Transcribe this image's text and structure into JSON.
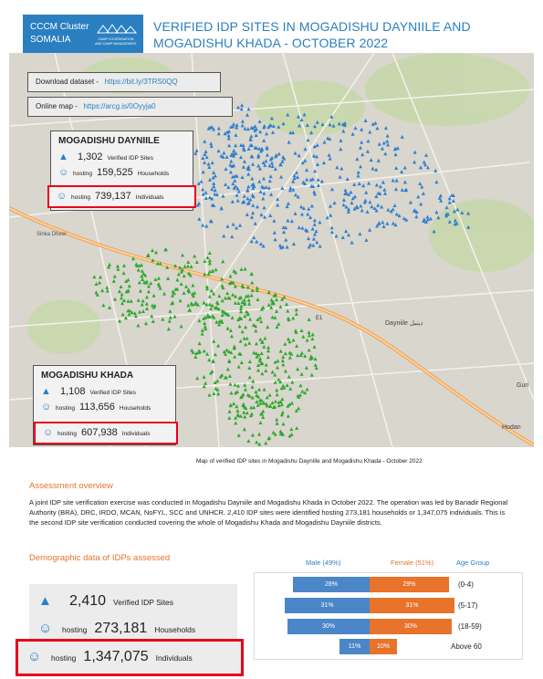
{
  "header": {
    "badge_line1": "CCCM Cluster",
    "badge_line2": "SOMALIA",
    "logo_text": "CAMP COORDINATION AND CAMP MANAGEMENT",
    "title_line1": "VERIFIED IDP SITES IN MOGADISHU DAYNIILE AND",
    "title_line2": "MOGADISHU KHADA - OCTOBER 2022"
  },
  "links": {
    "dataset_label": "Download dataset -",
    "dataset_url": "https://bit.ly/3TRS0QQ",
    "map_label": "Online map -",
    "map_url": "https://arcg.is/0Oyyja0"
  },
  "map_labels": {
    "sinka_dheer": "Sinka Dheer",
    "dayniile": "Dayniile دينيل",
    "hodan": "Hodan",
    "guri": "Guri",
    "e1": "E1"
  },
  "dayniile": {
    "title": "MOGADISHU DAYNIILE",
    "sites": "1,302",
    "sites_label": "Verified IDP Sites",
    "households": "159,525",
    "households_label": "Households",
    "individuals": "739,137",
    "individuals_label": "Individuals",
    "hosting": "hosting"
  },
  "khada": {
    "title": "MOGADISHU KHADA",
    "sites": "1,108",
    "sites_label": "Verified IDP Sites",
    "households": "113,656",
    "households_label": "Households",
    "individuals": "607,938",
    "individuals_label": "Individuals",
    "hosting": "hosting"
  },
  "map_caption": "Map of verified IDP sites in Mogadishu Daynille and Mogadishu Khada - October 2022",
  "overview": {
    "heading": "Assessment overview",
    "text": "A joint IDP site verification exercise was conducted in Mogadishu Dayniile and Mogadishu Khada in October 2022. The operation was led by Banadir Regional Authority (BRA), DRC, IRDO, MCAN, NoFYL, SCC and UNHCR. 2,410 IDP sites were identified hosting 273,181 households or 1,347,075 individuals. This is the second IDP site verification conducted covering the whole of Mogadishu Khada and Mogadishu Dayniile districts."
  },
  "demographic": {
    "heading": "Demographic data of IDPs assessed",
    "sites": "2,410",
    "sites_label": "Verified IDP Sites",
    "hosting": "hosting",
    "households": "273,181",
    "households_label": "Households",
    "individuals": "1,347,075",
    "individuals_label": "Individuals"
  },
  "chart_data": {
    "type": "bar",
    "male_label": "Male (49%)",
    "female_label": "Female (51%)",
    "age_label": "Age Group",
    "categories": [
      "(0-4)",
      "(5-17)",
      "(18-59)",
      "Above 60"
    ],
    "series": [
      {
        "name": "Male (49%)",
        "values": [
          28,
          31,
          30,
          11
        ],
        "labels": [
          "28%",
          "31%",
          "30%",
          "11%"
        ]
      },
      {
        "name": "Female (51%)",
        "values": [
          29,
          31,
          30,
          10
        ],
        "labels": [
          "29%",
          "31%",
          "30%",
          "10%"
        ]
      }
    ]
  },
  "colors": {
    "accent": "#2a7fc1",
    "orange": "#e8732a",
    "highlight": "#e8001c",
    "dayniile_sites": "#2f7fd0",
    "khada_sites": "#2fa82f"
  }
}
